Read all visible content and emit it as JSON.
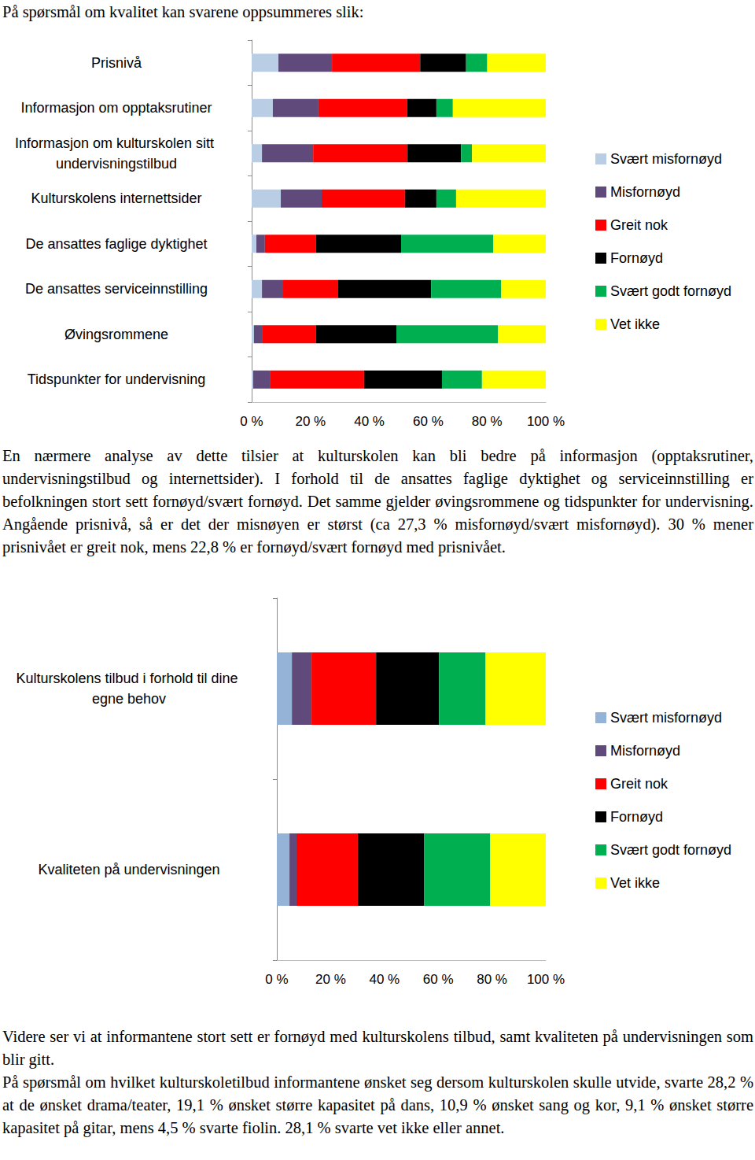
{
  "intro": "På spørsmål om kvalitet kan svarene oppsummeres slik:",
  "text_after_chart_1": [
    "En nærmere analyse av dette tilsier at kulturskolen kan bli bedre på informasjon (opptaksrutiner, undervisningstilbud og internettsider). I forhold til de ansattes faglige dyktighet og serviceinnstilling er befolkningen stort sett fornøyd/svært fornøyd. Det samme gjelder øvingsrommene og tidspunkter for undervisning. Angående prisnivå, så er det der misnøyen er størst (ca 27,3 % misfornøyd/svært misfornøyd). 30 % mener prisnivået er greit nok, mens 22,8 % er fornøyd/svært fornøyd med prisnivået."
  ],
  "text_after_chart_2": [
    "Videre ser vi at informantene stort sett er fornøyd med kulturskolens tilbud, samt kvaliteten på undervisningen som blir gitt.",
    "På spørsmål om hvilket kulturskoletilbud informantene ønsket seg dersom kulturskolen skulle utvide, svarte 28,2 % at de ønsket drama/teater, 19,1 % ønsket større kapasitet på dans, 10,9 % ønsket sang og kor, 9,1 % ønsket større kapasitet på gitar, mens 4,5 % svarte fiolin. 28,1 % svarte vet ikke eller annet."
  ],
  "chart_data": [
    {
      "type": "bar",
      "orientation": "horizontal",
      "stacked": true,
      "grid": false,
      "legend": "right",
      "categories": [
        "Prisnivå",
        "Informasjon om opptaksrutiner",
        "Informasjon om kulturskolen sitt undervisningstilbud",
        "Kulturskolens internettsider",
        "De ansattes faglige dyktighet",
        "De ansattes serviceinnstilling",
        "Øvingsrommene",
        "Tidspunkter for undervisning"
      ],
      "series": [
        {
          "name": "Svært misfornøyd",
          "color": "#b9cde5",
          "values": [
            9.1,
            7.2,
            3.5,
            9.9,
            1.6,
            3.5,
            0.8,
            0.5
          ]
        },
        {
          "name": "Misfornøyd",
          "color": "#604a7b",
          "values": [
            18.2,
            15.5,
            17.4,
            13.9,
            2.9,
            7.2,
            2.7,
            5.9
          ]
        },
        {
          "name": "Greit nok",
          "color": "#ff0000",
          "values": [
            30.0,
            30.2,
            32.1,
            28.3,
            17.4,
            18.7,
            18.4,
            31.8
          ]
        },
        {
          "name": "Fornøyd",
          "color": "#000000",
          "values": [
            15.6,
            9.9,
            18.2,
            10.7,
            28.9,
            31.6,
            27.3,
            26.5
          ]
        },
        {
          "name": "Svært godt fornøyd",
          "color": "#00b050",
          "values": [
            7.2,
            5.6,
            3.7,
            6.7,
            31.3,
            23.8,
            34.5,
            13.6
          ]
        },
        {
          "name": "Vet ikke",
          "color": "#ffff00",
          "values": [
            19.9,
            31.6,
            25.1,
            30.5,
            17.9,
            15.2,
            16.3,
            21.7
          ]
        }
      ],
      "xlim": [
        0,
        100
      ],
      "xticks": [
        {
          "value": 0,
          "label": "0 %"
        },
        {
          "value": 20,
          "label": "20 %"
        },
        {
          "value": 40,
          "label": "40 %"
        },
        {
          "value": 60,
          "label": "60 %"
        },
        {
          "value": 80,
          "label": "80 %"
        },
        {
          "value": 100,
          "label": "100 %"
        }
      ]
    },
    {
      "type": "bar",
      "orientation": "horizontal",
      "stacked": true,
      "grid": false,
      "legend": "right",
      "categories": [
        "Kulturskolens tilbud i forhold til dine egne behov",
        "Kvaliteten på undervisningen"
      ],
      "series": [
        {
          "name": "Svært misfornøyd",
          "color": "#95b3d7",
          "values": [
            5.6,
            4.7
          ]
        },
        {
          "name": "Misfornøyd",
          "color": "#604a7b",
          "values": [
            7.3,
            2.6
          ]
        },
        {
          "name": "Greit nok",
          "color": "#ff0000",
          "values": [
            24.0,
            22.8
          ]
        },
        {
          "name": "Fornøyd",
          "color": "#000000",
          "values": [
            23.4,
            24.6
          ]
        },
        {
          "name": "Svært godt fornøyd",
          "color": "#00b050",
          "values": [
            17.3,
            24.6
          ]
        },
        {
          "name": "Vet ikke",
          "color": "#ffff00",
          "values": [
            22.4,
            20.7
          ]
        }
      ],
      "xlim": [
        0,
        100
      ],
      "xticks": [
        {
          "value": 0,
          "label": "0 %"
        },
        {
          "value": 20,
          "label": "20 %"
        },
        {
          "value": 40,
          "label": "40 %"
        },
        {
          "value": 60,
          "label": "60 %"
        },
        {
          "value": 80,
          "label": "80 %"
        },
        {
          "value": 100,
          "label": "100 %"
        }
      ]
    }
  ]
}
